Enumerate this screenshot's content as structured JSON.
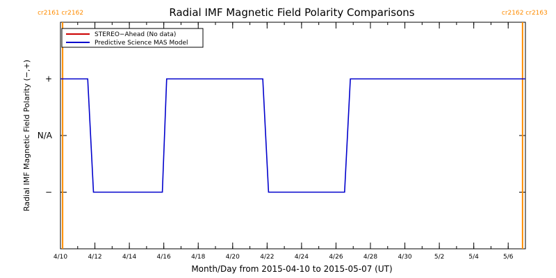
{
  "chart_data": {
    "type": "line",
    "title": "Radial IMF Magnetic Field Polarity Comparisons",
    "xlabel": "Month/Day from 2015-04-10 to 2015-05-07 (UT)",
    "ylabel": "Radial IMF Magnetic Field Polarity (−,+)",
    "x_range": [
      "2015-04-10",
      "2015-05-07"
    ],
    "y_ticks": [
      {
        "value": 1,
        "label": "+"
      },
      {
        "value": 0,
        "label": "N/A"
      },
      {
        "value": -1,
        "label": "−"
      }
    ],
    "ylim": [
      -2,
      2
    ],
    "x_ticks": [
      {
        "date": "2015-04-10",
        "label": "4/10"
      },
      {
        "date": "2015-04-12",
        "label": "4/12"
      },
      {
        "date": "2015-04-14",
        "label": "4/14"
      },
      {
        "date": "2015-04-16",
        "label": "4/16"
      },
      {
        "date": "2015-04-18",
        "label": "4/18"
      },
      {
        "date": "2015-04-20",
        "label": "4/20"
      },
      {
        "date": "2015-04-22",
        "label": "4/22"
      },
      {
        "date": "2015-04-24",
        "label": "4/24"
      },
      {
        "date": "2015-04-26",
        "label": "4/26"
      },
      {
        "date": "2015-04-28",
        "label": "4/28"
      },
      {
        "date": "2015-04-30",
        "label": "4/30"
      },
      {
        "date": "2015-05-02",
        "label": "5/2"
      },
      {
        "date": "2015-05-04",
        "label": "5/4"
      },
      {
        "date": "2015-05-06",
        "label": "5/6"
      }
    ],
    "legend": {
      "position": "top-left",
      "entries": [
        {
          "label": "STEREO−Ahead (No data)",
          "color": "#cc0000"
        },
        {
          "label": "Predictive Science MAS Model",
          "color": "#0000cc"
        }
      ]
    },
    "series": [
      {
        "name": "Predictive Science MAS Model",
        "color": "#0000cc",
        "x": [
          "2015-04-10 00:00",
          "2015-04-11 14:00",
          "2015-04-11 22:00",
          "2015-04-15 22:00",
          "2015-04-16 04:00",
          "2015-04-21 18:00",
          "2015-04-22 02:00",
          "2015-04-26 12:00",
          "2015-04-26 20:00",
          "2015-05-07 00:00"
        ],
        "values": [
          1,
          1,
          -1,
          -1,
          1,
          1,
          -1,
          -1,
          1,
          1
        ]
      }
    ],
    "carrington_markers": [
      {
        "date": "2015-04-10 03:00",
        "label": "cr2161 cr2162",
        "color": "#ff8c00"
      },
      {
        "date": "2015-05-06 20:00",
        "label": "cr2162 cr2163",
        "color": "#ff8c00"
      }
    ]
  }
}
